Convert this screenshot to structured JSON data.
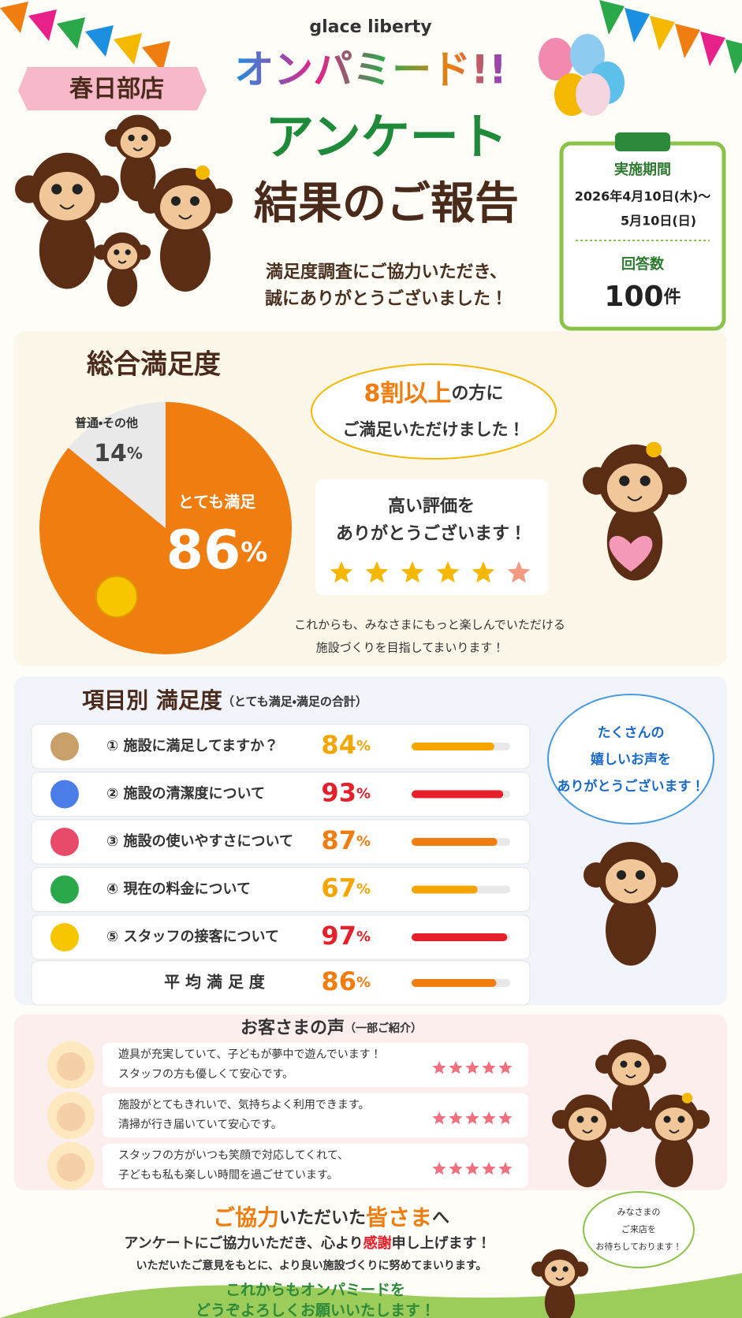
{
  "header": {
    "brand": "glace liberty",
    "logo": "オンパミード!!",
    "store": "春日部店",
    "title_line1": "アンケート",
    "title_line2": "結果のご報告",
    "thanks_line1": "満足度調査にご協力いただき、",
    "thanks_line2": "誠にありがとうございました！"
  },
  "period": {
    "label": "実施期間",
    "line1": "2026年4月10日(木)〜",
    "line2": "5月10日(日)",
    "responses_label": "回答数",
    "responses": 100,
    "responses_unit": "件"
  },
  "overall": {
    "title": "総合満足度",
    "unit": "%",
    "segments": [
      {
        "name": "とても満足",
        "value": 86,
        "color": "#f07d10"
      },
      {
        "name": "普通・その他",
        "value": 14,
        "color": "#e9e9e9"
      }
    ],
    "bubble_em": "8割以上",
    "bubble_rest": "の方に",
    "bubble_line2": "ご満足いただけました！",
    "card_line1": "高い評価を",
    "card_line2": "ありがとうございます！",
    "footer_line1": "これからも、みなさまにもっと楽しんでいただける",
    "footer_line2": "施設づくりを目指してまいります！"
  },
  "items": {
    "title": "項目別 満足度",
    "note": "（とても満足・満足の合計）",
    "unit": "%",
    "xlim": [
      0,
      100
    ],
    "rows": [
      {
        "label": "① 施設に満足してますか？",
        "value": 84,
        "color": "#f5a500"
      },
      {
        "label": "② 施設の清潔度について",
        "value": 93,
        "color": "#e5202a"
      },
      {
        "label": "③ 施設の使いやすさについて",
        "value": 87,
        "color": "#f07d10"
      },
      {
        "label": "④ 現在の料金について",
        "value": 67,
        "color": "#f5a500"
      },
      {
        "label": "⑤ スタッフの接客について",
        "value": 97,
        "color": "#e5202a"
      }
    ],
    "average": {
      "label": "平 均 満 足 度",
      "value": 86,
      "color": "#f07d10"
    },
    "bubble": [
      "たくさんの",
      "嬉しいお声を",
      "ありがとうございます！"
    ]
  },
  "voices": {
    "title": "お客さまの声",
    "note": "（一部ご紹介）",
    "items": [
      [
        "遊具が充実していて、子どもが夢中で遊んでいます！",
        "スタッフの方も優しくて安心です。"
      ],
      [
        "施設がとてもきれいで、気持ちよく利用できます。",
        "清掃が行き届いていて安心です。"
      ],
      [
        "スタッフの方がいつも笑顔で対応してくれて、",
        "子どもも私も楽しい時間を過ごせています。"
      ]
    ]
  },
  "closing": {
    "title_em1": "ご協力",
    "title_mid": "いただいた",
    "title_em2": "皆さま",
    "title_end": "へ",
    "line1_a": "アンケートにご協力いただき、心より",
    "line1_em": "感謝",
    "line1_b": "申し上げます！",
    "line2": "いただいたご意見をもとに、より良い施設づくりに努めてまいります。",
    "line3": "これからもオンパミードを",
    "line4": "どうぞよろしくお願いいたします！",
    "bubble": [
      "みなさまの",
      "ご来店を",
      "お待ちしております！"
    ]
  }
}
